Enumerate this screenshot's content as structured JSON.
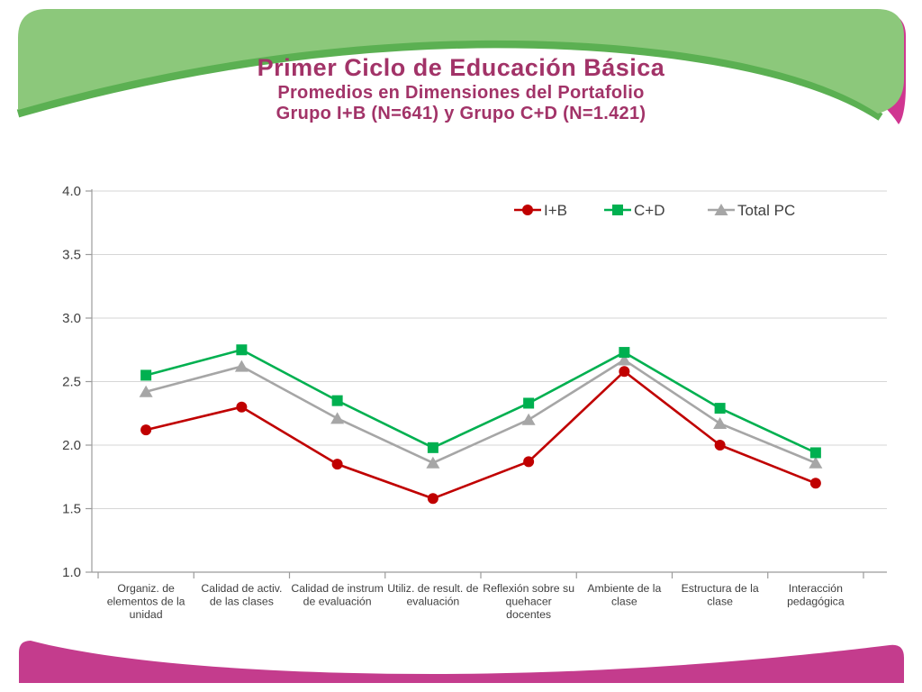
{
  "slide": {
    "title": "Primer Ciclo de Educación Básica",
    "subtitle1": "Promedios en Dimensiones del Portafolio",
    "subtitle2": "Grupo I+B (N=641) y Grupo C+D (N=1.421)"
  },
  "colors": {
    "title_text": "#A23368",
    "deco_green_light": "#8CC87B",
    "deco_green_dark": "#5BB052",
    "deco_pink_top": "#D03691",
    "deco_pink_bottom": "#C43C8D",
    "axis": "#9B9B9B",
    "grid": "#D6D6D6",
    "chart_text": "#3F3F3F"
  },
  "chart_data": {
    "type": "line",
    "title": "",
    "xlabel": "",
    "ylabel": "",
    "ylim": [
      1.0,
      4.0
    ],
    "ytick_step": 0.5,
    "ytick_labels": [
      "1.0",
      "1.5",
      "2.0",
      "2.5",
      "3.0",
      "3.5",
      "4.0"
    ],
    "grid": "horizontal",
    "legend_position": "top-inside",
    "categories": [
      "Organiz. de elementos de la unidad",
      "Calidad de activ. de las clases",
      "Calidad de instrum de evaluación",
      "Utiliz. de result. de evaluación",
      "Reflexión sobre su quehacer docentes",
      "Ambiente de la clase",
      "Estructura de la clase",
      "Interacción pedagógica"
    ],
    "category_lines": [
      [
        "Organiz. de",
        "elementos de la",
        "unidad"
      ],
      [
        "Calidad de activ.",
        "de las clases"
      ],
      [
        "Calidad de instrum",
        "de evaluación"
      ],
      [
        "Utiliz. de result. de",
        "evaluación"
      ],
      [
        "Reflexión sobre su",
        "quehacer",
        "docentes"
      ],
      [
        "Ambiente de la",
        "clase"
      ],
      [
        "Estructura de la",
        "clase"
      ],
      [
        "Interacción",
        "pedagógica"
      ]
    ],
    "series": [
      {
        "name": "Total PC",
        "color": "#A6A6A6",
        "marker": "triangle",
        "values": [
          2.42,
          2.62,
          2.21,
          1.86,
          2.2,
          2.67,
          2.17,
          1.86
        ]
      },
      {
        "name": "C+D",
        "color": "#00B050",
        "marker": "square",
        "values": [
          2.55,
          2.75,
          2.35,
          1.98,
          2.33,
          2.73,
          2.29,
          1.94
        ]
      },
      {
        "name": "I+B",
        "color": "#C00000",
        "marker": "circle",
        "values": [
          2.12,
          2.3,
          1.85,
          1.58,
          1.87,
          2.58,
          2.0,
          1.7
        ]
      }
    ],
    "legend_order": [
      "I+B",
      "C+D",
      "Total PC"
    ]
  }
}
